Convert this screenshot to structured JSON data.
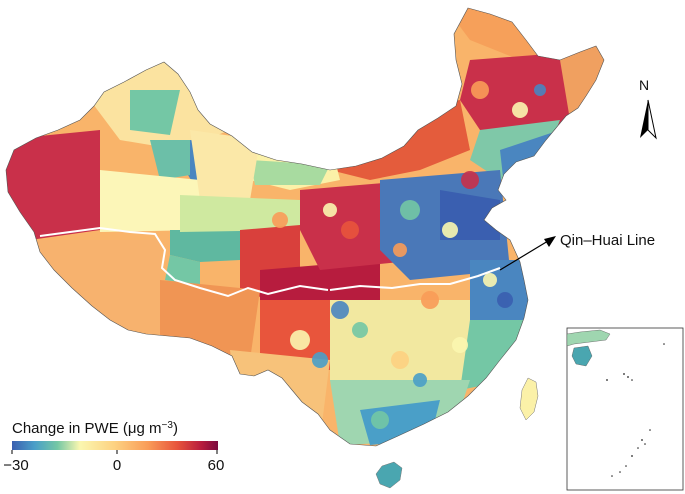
{
  "legend": {
    "title": "Change in PWE (μg m",
    "title_sup": "−3",
    "title_close": ")",
    "min_label": "−30",
    "mid_label": "0",
    "max_label": "60",
    "range": [
      -30,
      60
    ],
    "colors": [
      "#3a5fb0",
      "#4a9fc8",
      "#74c7a5",
      "#c6e9a0",
      "#fbf7b0",
      "#fdd181",
      "#f99c58",
      "#e8553c",
      "#b71c3e",
      "#7b0a3f"
    ]
  },
  "annotation": {
    "label": "Qin–Huai Line"
  },
  "north_arrow": {
    "label": "N"
  },
  "inset": {
    "name": "South China Sea islands"
  }
}
